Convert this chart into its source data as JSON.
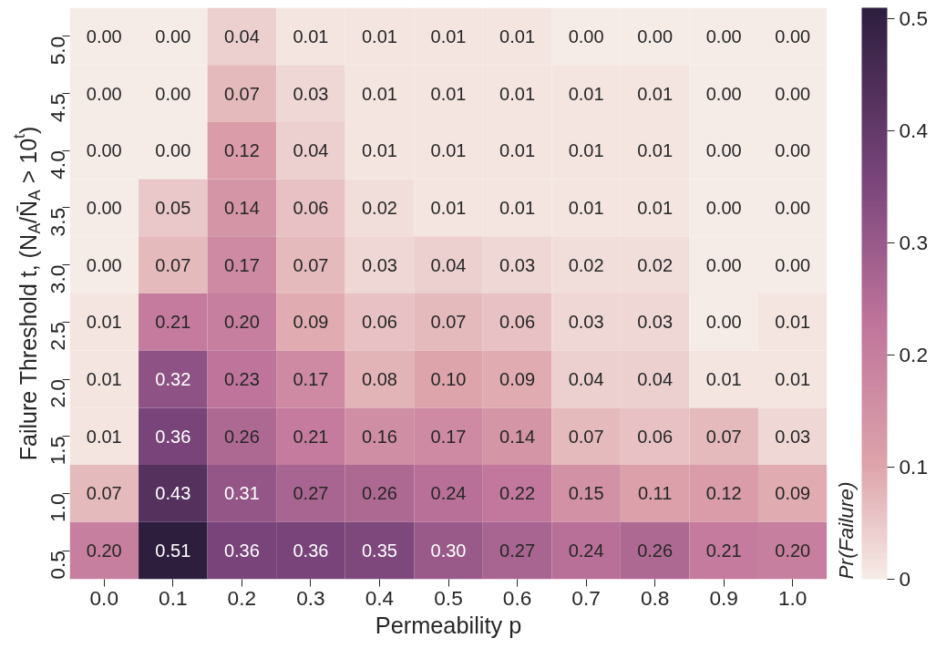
{
  "chart_data": {
    "type": "heatmap",
    "xlabel": "Permeability p",
    "ylabel": "Failure Threshold t, (N$_{A}$/N̄$_{A}$ > 10$^{t}$)",
    "clabel": "Pr(Failure)",
    "categories": [
      "0.0",
      "0.1",
      "0.2",
      "0.3",
      "0.4",
      "0.5",
      "0.6",
      "0.7",
      "0.8",
      "0.9",
      "1.0"
    ],
    "y_categories": [
      "5.0",
      "4.5",
      "4.0",
      "3.5",
      "3.0",
      "2.5",
      "2.0",
      "1.5",
      "1.0",
      "0.5"
    ],
    "cells": [
      [
        0.0,
        0.0,
        0.04,
        0.01,
        0.01,
        0.01,
        0.01,
        0.0,
        0.0,
        0.0,
        0.0
      ],
      [
        0.0,
        0.0,
        0.07,
        0.03,
        0.01,
        0.01,
        0.01,
        0.01,
        0.01,
        0.0,
        0.0
      ],
      [
        0.0,
        0.0,
        0.12,
        0.04,
        0.01,
        0.01,
        0.01,
        0.01,
        0.01,
        0.0,
        0.0
      ],
      [
        0.0,
        0.05,
        0.14,
        0.06,
        0.02,
        0.01,
        0.01,
        0.01,
        0.01,
        0.0,
        0.0
      ],
      [
        0.0,
        0.07,
        0.17,
        0.07,
        0.03,
        0.04,
        0.03,
        0.02,
        0.02,
        0.0,
        0.0
      ],
      [
        0.01,
        0.21,
        0.2,
        0.09,
        0.06,
        0.07,
        0.06,
        0.03,
        0.03,
        0.0,
        0.01
      ],
      [
        0.01,
        0.32,
        0.23,
        0.17,
        0.08,
        0.1,
        0.09,
        0.04,
        0.04,
        0.01,
        0.01
      ],
      [
        0.01,
        0.36,
        0.26,
        0.21,
        0.16,
        0.17,
        0.14,
        0.07,
        0.06,
        0.07,
        0.03
      ],
      [
        0.07,
        0.43,
        0.31,
        0.27,
        0.26,
        0.24,
        0.22,
        0.15,
        0.11,
        0.12,
        0.09
      ],
      [
        0.2,
        0.51,
        0.36,
        0.36,
        0.35,
        0.3,
        0.27,
        0.24,
        0.26,
        0.21,
        0.2
      ]
    ],
    "cell_labels": [
      [
        "0.00",
        "0.00",
        "0.04",
        "0.01",
        "0.01",
        "0.01",
        "0.01",
        "0.00",
        "0.00",
        "0.00",
        "0.00"
      ],
      [
        "0.00",
        "0.00",
        "0.07",
        "0.03",
        "0.01",
        "0.01",
        "0.01",
        "0.01",
        "0.01",
        "0.00",
        "0.00"
      ],
      [
        "0.00",
        "0.00",
        "0.12",
        "0.04",
        "0.01",
        "0.01",
        "0.01",
        "0.01",
        "0.01",
        "0.00",
        "0.00"
      ],
      [
        "0.00",
        "0.05",
        "0.14",
        "0.06",
        "0.02",
        "0.01",
        "0.01",
        "0.01",
        "0.01",
        "0.00",
        "0.00"
      ],
      [
        "0.00",
        "0.07",
        "0.17",
        "0.07",
        "0.03",
        "0.04",
        "0.03",
        "0.02",
        "0.02",
        "0.00",
        "0.00"
      ],
      [
        "0.01",
        "0.21",
        "0.20",
        "0.09",
        "0.06",
        "0.07",
        "0.06",
        "0.03",
        "0.03",
        "0.00",
        "0.01"
      ],
      [
        "0.01",
        "0.32",
        "0.23",
        "0.17",
        "0.08",
        "0.10",
        "0.09",
        "0.04",
        "0.04",
        "0.01",
        "0.01"
      ],
      [
        "0.01",
        "0.36",
        "0.26",
        "0.21",
        "0.16",
        "0.17",
        "0.14",
        "0.07",
        "0.06",
        "0.07",
        "0.03"
      ],
      [
        "0.07",
        "0.43",
        "0.31",
        "0.27",
        "0.26",
        "0.24",
        "0.22",
        "0.15",
        "0.11",
        "0.12",
        "0.09"
      ],
      [
        "0.20",
        "0.51",
        "0.36",
        "0.36",
        "0.35",
        "0.30",
        "0.27",
        "0.24",
        "0.26",
        "0.21",
        "0.20"
      ]
    ],
    "clim": [
      0,
      0.51
    ],
    "cticks": [
      0,
      0.1,
      0.2,
      0.3,
      0.4,
      0.5
    ],
    "data_labels": true
  }
}
